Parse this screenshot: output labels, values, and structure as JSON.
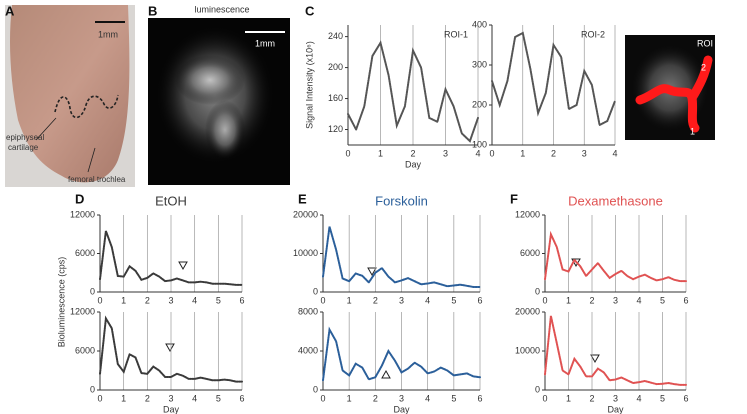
{
  "panels": {
    "a": {
      "letter": "A",
      "scale_bar": "1mm",
      "label_1": [
        "epiphyseal",
        "cartilage"
      ],
      "label_2": "femoral trochlea"
    },
    "b": {
      "letter": "B",
      "title": "luminescence",
      "scale_bar": "1mm"
    },
    "c": {
      "letter": "C",
      "roi_title": "ROI",
      "roi_labels": [
        "2",
        "1"
      ]
    },
    "d": {
      "letter": "D"
    },
    "e": {
      "letter": "E"
    },
    "f": {
      "letter": "F"
    }
  },
  "chart_data": [
    {
      "type": "line",
      "annotation": "ROI-1",
      "ylabel": "Signal Intensity (x10⁶)",
      "xlabel": "Day",
      "x": [
        0,
        0.25,
        0.5,
        0.75,
        1,
        1.25,
        1.5,
        1.75,
        2,
        2.25,
        2.5,
        2.75,
        3,
        3.25,
        3.5,
        3.75,
        4
      ],
      "series": [
        {
          "color": "#555555",
          "values": [
            140,
            120,
            150,
            215,
            232,
            190,
            125,
            150,
            222,
            200,
            135,
            130,
            172,
            150,
            115,
            105,
            135
          ]
        }
      ],
      "xlim": [
        0,
        4
      ],
      "ylim": [
        100,
        255
      ],
      "xticks": [
        0,
        1,
        2,
        3,
        4
      ],
      "yticks": [
        120,
        160,
        200,
        240
      ],
      "grid": true
    },
    {
      "type": "line",
      "annotation": "ROI-2",
      "x": [
        0,
        0.25,
        0.5,
        0.75,
        1,
        1.25,
        1.5,
        1.75,
        2,
        2.25,
        2.5,
        2.75,
        3,
        3.25,
        3.5,
        3.75,
        4
      ],
      "series": [
        {
          "color": "#555555",
          "values": [
            260,
            200,
            260,
            370,
            380,
            290,
            180,
            230,
            350,
            320,
            190,
            200,
            285,
            250,
            150,
            160,
            210
          ]
        }
      ],
      "xlim": [
        0,
        4
      ],
      "ylim": [
        100,
        400
      ],
      "xticks": [
        0,
        1,
        2,
        3,
        4
      ],
      "yticks": [
        100,
        200,
        300,
        400
      ],
      "grid": true
    },
    {
      "type": "line",
      "title": "EtOH",
      "ylabel": "Bioluminescence (cps)",
      "x": [
        0,
        0.25,
        0.5,
        0.75,
        1,
        1.25,
        1.5,
        1.75,
        2,
        2.25,
        2.5,
        2.75,
        3,
        3.25,
        3.5,
        3.75,
        4,
        4.25,
        4.5,
        4.75,
        5,
        5.25,
        5.5,
        5.75,
        6
      ],
      "series": [
        {
          "color": "#3a3a3a",
          "values": [
            2000,
            9500,
            7000,
            2500,
            2400,
            4000,
            3300,
            1900,
            2200,
            2900,
            2400,
            1700,
            1800,
            2100,
            1800,
            1500,
            1500,
            1600,
            1500,
            1300,
            1300,
            1300,
            1200,
            1100,
            1100
          ]
        }
      ],
      "xlim": [
        0,
        6
      ],
      "ylim": [
        0,
        12000
      ],
      "xticks": [
        0,
        1,
        2,
        3,
        4,
        5,
        6
      ],
      "yticks": [
        0,
        6000,
        12000
      ],
      "grid": true
    },
    {
      "type": "line",
      "xlabel": "Day",
      "x": [
        0,
        0.25,
        0.5,
        0.75,
        1,
        1.25,
        1.5,
        1.75,
        2,
        2.25,
        2.5,
        2.75,
        3,
        3.25,
        3.5,
        3.75,
        4,
        4.25,
        4.5,
        4.75,
        5,
        5.25,
        5.5,
        5.75,
        6
      ],
      "series": [
        {
          "color": "#3a3a3a",
          "values": [
            2500,
            11000,
            9500,
            4000,
            2800,
            5500,
            5000,
            2600,
            2500,
            3600,
            3000,
            2000,
            2000,
            2500,
            2200,
            1700,
            1700,
            1900,
            1700,
            1500,
            1500,
            1600,
            1500,
            1300,
            1300
          ]
        }
      ],
      "xlim": [
        0,
        6
      ],
      "ylim": [
        0,
        12000
      ],
      "xticks": [
        0,
        1,
        2,
        3,
        4,
        5,
        6
      ],
      "yticks": [
        0,
        6000,
        12000
      ],
      "grid": true
    },
    {
      "type": "line",
      "title": "Forskolin",
      "x": [
        0,
        0.25,
        0.5,
        0.75,
        1,
        1.25,
        1.5,
        1.75,
        2,
        2.25,
        2.5,
        2.75,
        3,
        3.25,
        3.5,
        3.75,
        4,
        4.25,
        4.5,
        4.75,
        5,
        5.25,
        5.5,
        5.75,
        6
      ],
      "series": [
        {
          "color": "#2b5f9a",
          "values": [
            4000,
            17000,
            11000,
            3500,
            2800,
            4800,
            4200,
            2500,
            5000,
            6200,
            4000,
            2500,
            3000,
            3600,
            2800,
            2000,
            2200,
            2500,
            2000,
            1500,
            1700,
            1900,
            1600,
            1300,
            1300
          ]
        }
      ],
      "xlim": [
        0,
        6
      ],
      "ylim": [
        0,
        20000
      ],
      "xticks": [
        0,
        1,
        2,
        3,
        4,
        5,
        6
      ],
      "yticks": [
        0,
        10000,
        20000
      ],
      "grid": true
    },
    {
      "type": "line",
      "xlabel": "Day",
      "x": [
        0,
        0.25,
        0.5,
        0.75,
        1,
        1.25,
        1.5,
        1.75,
        2,
        2.25,
        2.5,
        2.75,
        3,
        3.25,
        3.5,
        3.75,
        4,
        4.25,
        4.5,
        4.75,
        5,
        5.25,
        5.5,
        5.75,
        6
      ],
      "series": [
        {
          "color": "#2b5f9a",
          "values": [
            1000,
            6200,
            5000,
            2000,
            1500,
            2700,
            2300,
            1100,
            1300,
            2500,
            4000,
            3000,
            1800,
            2200,
            2800,
            2400,
            1700,
            1900,
            2300,
            2000,
            1500,
            1600,
            1700,
            1400,
            1300
          ]
        }
      ],
      "xlim": [
        0,
        6
      ],
      "ylim": [
        0,
        8000
      ],
      "xticks": [
        0,
        1,
        2,
        3,
        4,
        5,
        6
      ],
      "yticks": [
        0,
        4000,
        8000
      ],
      "grid": true
    },
    {
      "type": "line",
      "title": "Dexamethasone",
      "x": [
        0,
        0.25,
        0.5,
        0.75,
        1,
        1.25,
        1.5,
        1.75,
        2,
        2.25,
        2.5,
        2.75,
        3,
        3.25,
        3.5,
        3.75,
        4,
        4.25,
        4.5,
        4.75,
        5,
        5.25,
        5.5,
        5.75,
        6
      ],
      "series": [
        {
          "color": "#e05252",
          "values": [
            2000,
            9000,
            7000,
            3500,
            3200,
            5000,
            4000,
            2500,
            3500,
            4500,
            3300,
            2200,
            2800,
            3300,
            2500,
            2000,
            2400,
            2700,
            2200,
            1800,
            2000,
            2300,
            1900,
            1700,
            1700
          ]
        }
      ],
      "xlim": [
        0,
        6
      ],
      "ylim": [
        0,
        12000
      ],
      "xticks": [
        0,
        1,
        2,
        3,
        4,
        5,
        6
      ],
      "yticks": [
        0,
        6000,
        12000
      ],
      "grid": true
    },
    {
      "type": "line",
      "xlabel": "Day",
      "x": [
        0,
        0.25,
        0.5,
        0.75,
        1,
        1.25,
        1.5,
        1.75,
        2,
        2.25,
        2.5,
        2.75,
        3,
        3.25,
        3.5,
        3.75,
        4,
        4.25,
        4.5,
        4.75,
        5,
        5.25,
        5.5,
        5.75,
        6
      ],
      "series": [
        {
          "color": "#e05252",
          "values": [
            4000,
            19000,
            12000,
            5000,
            4000,
            8000,
            6000,
            3500,
            3500,
            5500,
            4500,
            2500,
            2700,
            3200,
            2500,
            1800,
            2000,
            2300,
            1900,
            1500,
            1600,
            1800,
            1500,
            1300,
            1300
          ]
        }
      ],
      "xlim": [
        0,
        6
      ],
      "ylim": [
        0,
        20000
      ],
      "xticks": [
        0,
        1,
        2,
        3,
        4,
        5,
        6
      ],
      "yticks": [
        0,
        10000,
        20000
      ],
      "grid": true
    }
  ]
}
